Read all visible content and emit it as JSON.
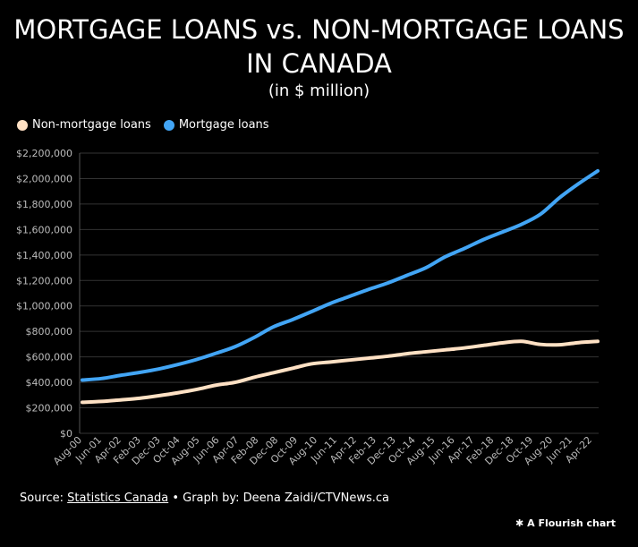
{
  "title_line1": "MORTGAGE LOANS vs. NON-MORTGAGE LOANS",
  "title_line2": "IN CANADA",
  "subtitle": "(in $ million)",
  "footer": {
    "source_prefix": "Source: ",
    "source_link": "Statistics Canada",
    "credit": " • Graph by: Deena Zaidi/CTVNews.ca"
  },
  "flourish_badge": "A Flourish chart",
  "colors": {
    "background": "#000000",
    "mortgage": "#42a5f5",
    "non_mortgage": "#ffe1c4",
    "grid": "#333333",
    "axis_text": "#bbbbbb"
  },
  "chart_data": {
    "type": "line",
    "title": "MORTGAGE LOANS vs. NON-MORTGAGE LOANS IN CANADA",
    "subtitle": "(in $ million)",
    "xlabel": "",
    "ylabel": "",
    "ylim": [
      0,
      2200000
    ],
    "yticks": [
      0,
      200000,
      400000,
      600000,
      800000,
      1000000,
      1200000,
      1400000,
      1600000,
      1800000,
      2000000,
      2200000
    ],
    "ytick_labels": [
      "$0",
      "$200,000",
      "$400,000",
      "$600,000",
      "$800,000",
      "$1,000,000",
      "$1,200,000",
      "$1,400,000",
      "$1,600,000",
      "$1,800,000",
      "$2,000,000",
      "$2,200,000"
    ],
    "xticks": [
      "Aug-00",
      "Jun-01",
      "Apr-02",
      "Feb-03",
      "Dec-03",
      "Oct-04",
      "Aug-05",
      "Jun-06",
      "Apr-07",
      "Feb-08",
      "Dec-08",
      "Oct-09",
      "Aug-10",
      "Jun-11",
      "Apr-12",
      "Feb-13",
      "Dec-13",
      "Oct-14",
      "Aug-15",
      "Jun-16",
      "Apr-17",
      "Feb-18",
      "Dec-18",
      "Oct-19",
      "Aug-20",
      "Jun-21",
      "Apr-22"
    ],
    "grid": true,
    "legend_position": "top-left",
    "series": [
      {
        "name": "Non-mortgage loans",
        "color": "#ffe1c4",
        "values": [
          243000,
          250000,
          262000,
          275000,
          295000,
          318000,
          345000,
          378000,
          400000,
          440000,
          475000,
          510000,
          545000,
          560000,
          575000,
          590000,
          605000,
          625000,
          640000,
          655000,
          670000,
          690000,
          710000,
          722000,
          698000,
          695000,
          712000,
          722000
        ]
      },
      {
        "name": "Mortgage loans",
        "color": "#42a5f5",
        "values": [
          418000,
          430000,
          455000,
          478000,
          505000,
          540000,
          580000,
          628000,
          680000,
          752000,
          835000,
          892000,
          955000,
          1020000,
          1075000,
          1130000,
          1180000,
          1240000,
          1300000,
          1385000,
          1450000,
          1520000,
          1580000,
          1640000,
          1720000,
          1850000,
          1960000,
          2060000
        ]
      }
    ]
  }
}
